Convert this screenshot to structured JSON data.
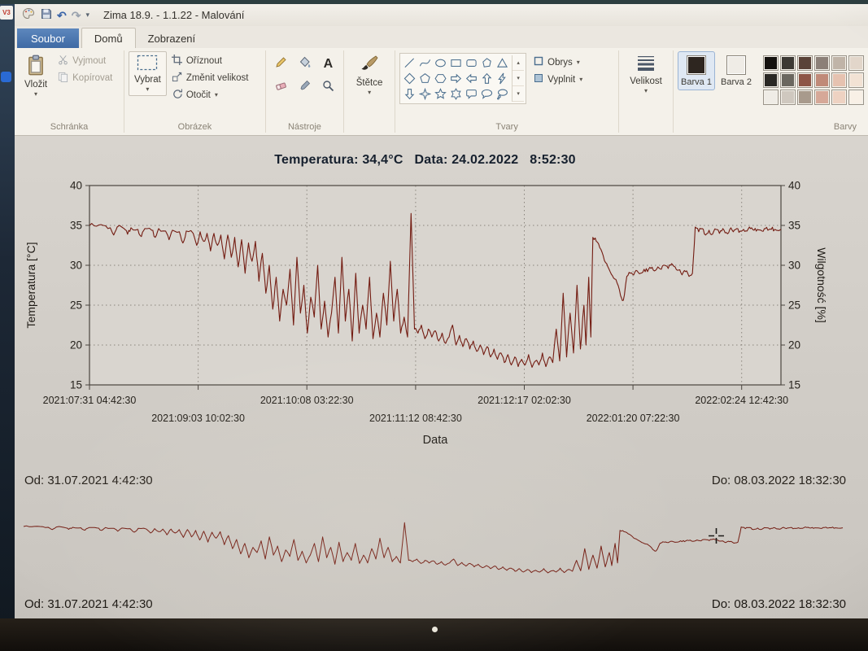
{
  "desktop": {
    "icon_label": "V3"
  },
  "icons": {
    "caret_down": "▾",
    "undo_arrow": "↶",
    "redo_arrow": "↷",
    "scroll_up": "▴",
    "scroll_down": "▾"
  },
  "window": {
    "title": "Zima 18.9. - 1.1.22 - Malování"
  },
  "tabs": {
    "file": "Soubor",
    "home": "Domů",
    "view": "Zobrazení"
  },
  "ribbon": {
    "clipboard": {
      "group_label": "Schránka",
      "paste": "Vložit",
      "cut": "Vyjmout",
      "copy": "Kopírovat"
    },
    "image": {
      "group_label": "Obrázek",
      "select": "Vybrat",
      "crop": "Oříznout",
      "resize": "Změnit velikost",
      "rotate": "Otočit"
    },
    "tools": {
      "group_label": "Nástroje",
      "text_icon": "A"
    },
    "brushes": {
      "label": "Štětce"
    },
    "shapes": {
      "group_label": "Tvary",
      "outline": "Obrys",
      "fill": "Vyplnit"
    },
    "size": {
      "label": "Velikost"
    },
    "colors": {
      "group_label": "Barvy",
      "color1_label": "Barva 1",
      "color2_label": "Barva 2",
      "color1": "#2e2620",
      "color2": "#efece6",
      "palette": [
        "#14110e",
        "#3c3934",
        "#5a4238",
        "#8c8078",
        "#c0b4a8",
        "#e2d6ca",
        "#2a2824",
        "#6b675f",
        "#8d5546",
        "#c08a78",
        "#e6c2b0",
        "#f2e2d4",
        "#efece6",
        "#cfc8bf",
        "#a89a8c",
        "#d6a898",
        "#eed2c2",
        "#f8f0e6"
      ]
    }
  },
  "canvas": {
    "range_top": {
      "from": "Od: 31.07.2021 4:42:30",
      "to": "Do: 08.03.2022 18:32:30"
    },
    "range_bottom": {
      "from": "Od: 31.07.2021 4:42:30",
      "to": "Do: 08.03.2022 18:32:30"
    }
  },
  "chart_data": {
    "type": "line",
    "title": "Temperatura: 34,4°C   Data: 24.02.2022   8:52:30",
    "xlabel": "Data",
    "ylabel_left": "Temperatura [°C]",
    "ylabel_right": "Wilgotność [%]",
    "ylim": [
      15,
      40
    ],
    "yticks": [
      40,
      35,
      30,
      25,
      20,
      15
    ],
    "grid": true,
    "line_color": "#731c12",
    "xtick_labels": [
      "2021:07:31 04:42:30",
      "2021:09:03 10:02:30",
      "2021:10:08 03:22:30",
      "2021:11:12 08:42:30",
      "2021:12:17 02:02:30",
      "2022:01:20 07:22:30",
      "2022:02:24 12:42:30"
    ],
    "series": [
      {
        "name": "Temperatura",
        "x": [
          0.0,
          0.01,
          0.02,
          0.03,
          0.035,
          0.04,
          0.05,
          0.055,
          0.06,
          0.07,
          0.075,
          0.08,
          0.09,
          0.095,
          0.1,
          0.11,
          0.115,
          0.12,
          0.13,
          0.135,
          0.14,
          0.15,
          0.155,
          0.16,
          0.165,
          0.17,
          0.175,
          0.18,
          0.185,
          0.19,
          0.195,
          0.2,
          0.205,
          0.21,
          0.215,
          0.22,
          0.225,
          0.23,
          0.235,
          0.24,
          0.245,
          0.25,
          0.255,
          0.26,
          0.265,
          0.27,
          0.275,
          0.28,
          0.285,
          0.29,
          0.295,
          0.3,
          0.305,
          0.31,
          0.315,
          0.32,
          0.325,
          0.33,
          0.335,
          0.34,
          0.345,
          0.35,
          0.355,
          0.36,
          0.365,
          0.37,
          0.375,
          0.38,
          0.385,
          0.39,
          0.395,
          0.4,
          0.405,
          0.41,
          0.415,
          0.42,
          0.425,
          0.43,
          0.435,
          0.44,
          0.445,
          0.45,
          0.455,
          0.46,
          0.465,
          0.47,
          0.475,
          0.48,
          0.485,
          0.49,
          0.495,
          0.5,
          0.505,
          0.51,
          0.515,
          0.52,
          0.525,
          0.53,
          0.535,
          0.54,
          0.545,
          0.55,
          0.555,
          0.56,
          0.565,
          0.57,
          0.575,
          0.58,
          0.585,
          0.59,
          0.595,
          0.6,
          0.605,
          0.61,
          0.615,
          0.62,
          0.625,
          0.63,
          0.635,
          0.64,
          0.645,
          0.65,
          0.655,
          0.66,
          0.665,
          0.67,
          0.675,
          0.68,
          0.685,
          0.69,
          0.695,
          0.7,
          0.705,
          0.71,
          0.715,
          0.718,
          0.722,
          0.725,
          0.728,
          0.733,
          0.738,
          0.743,
          0.748,
          0.753,
          0.758,
          0.763,
          0.768,
          0.772,
          0.777,
          0.782,
          0.787,
          0.792,
          0.797,
          0.802,
          0.807,
          0.812,
          0.817,
          0.822,
          0.827,
          0.832,
          0.837,
          0.842,
          0.847,
          0.852,
          0.857,
          0.862,
          0.867,
          0.872,
          0.876,
          0.881,
          0.886,
          0.891,
          0.896,
          0.901,
          0.906,
          0.911,
          0.916,
          0.921,
          0.926,
          0.931,
          0.936,
          0.941,
          0.946,
          0.951,
          0.956,
          0.961,
          0.966,
          0.971,
          0.976,
          0.981,
          0.986,
          0.991,
          1.0
        ],
        "values": [
          35.0,
          34.9,
          35.0,
          34.7,
          33.8,
          34.8,
          34.6,
          33.9,
          34.7,
          34.5,
          33.6,
          34.6,
          34.4,
          33.5,
          34.6,
          34.3,
          33.2,
          34.4,
          34.2,
          32.8,
          34.3,
          34.0,
          32.5,
          34.2,
          33.0,
          34.0,
          31.8,
          34.0,
          32.5,
          33.8,
          30.8,
          33.8,
          31.0,
          33.5,
          29.8,
          33.2,
          29.0,
          32.8,
          30.5,
          33.0,
          28.0,
          31.5,
          26.5,
          30.0,
          24.5,
          28.5,
          23.0,
          27.0,
          25.0,
          29.5,
          22.5,
          31.0,
          24.0,
          27.5,
          21.5,
          26.0,
          23.5,
          30.0,
          22.0,
          25.5,
          21.0,
          24.0,
          28.5,
          21.5,
          31.0,
          23.0,
          27.0,
          20.5,
          29.0,
          21.5,
          25.0,
          22.0,
          28.5,
          20.8,
          24.0,
          21.0,
          26.5,
          22.5,
          30.5,
          23.0,
          27.0,
          21.5,
          23.5,
          21.0,
          36.5,
          22.0,
          21.5,
          22.5,
          20.8,
          22.0,
          21.0,
          21.8,
          20.5,
          21.5,
          20.2,
          21.0,
          22.5,
          20.0,
          21.2,
          19.8,
          20.8,
          19.5,
          20.5,
          19.2,
          20.0,
          18.8,
          19.8,
          18.5,
          19.5,
          18.2,
          19.0,
          17.8,
          18.8,
          17.5,
          18.5,
          17.3,
          18.2,
          17.5,
          18.8,
          17.2,
          18.0,
          17.5,
          19.0,
          17.3,
          18.5,
          17.8,
          22.0,
          18.0,
          26.5,
          18.5,
          24.0,
          19.0,
          27.5,
          19.5,
          25.0,
          20.0,
          28.5,
          21.0,
          33.5,
          33.0,
          32.2,
          31.2,
          30.2,
          29.2,
          28.4,
          27.8,
          26.2,
          25.6,
          28.6,
          29.0,
          28.8,
          29.3,
          29.0,
          29.5,
          29.2,
          29.6,
          29.3,
          29.8,
          29.5,
          30.0,
          29.6,
          30.2,
          29.8,
          29.4,
          28.8,
          29.2,
          28.6,
          29.0,
          34.8,
          34.2,
          34.6,
          33.8,
          34.4,
          33.9,
          34.5,
          34.0,
          34.6,
          34.1,
          34.5,
          34.2,
          34.6,
          34.3,
          34.5,
          34.3,
          34.6,
          34.4,
          34.5,
          34.4,
          34.6,
          34.4,
          34.5,
          34.5,
          34.5
        ]
      }
    ]
  }
}
